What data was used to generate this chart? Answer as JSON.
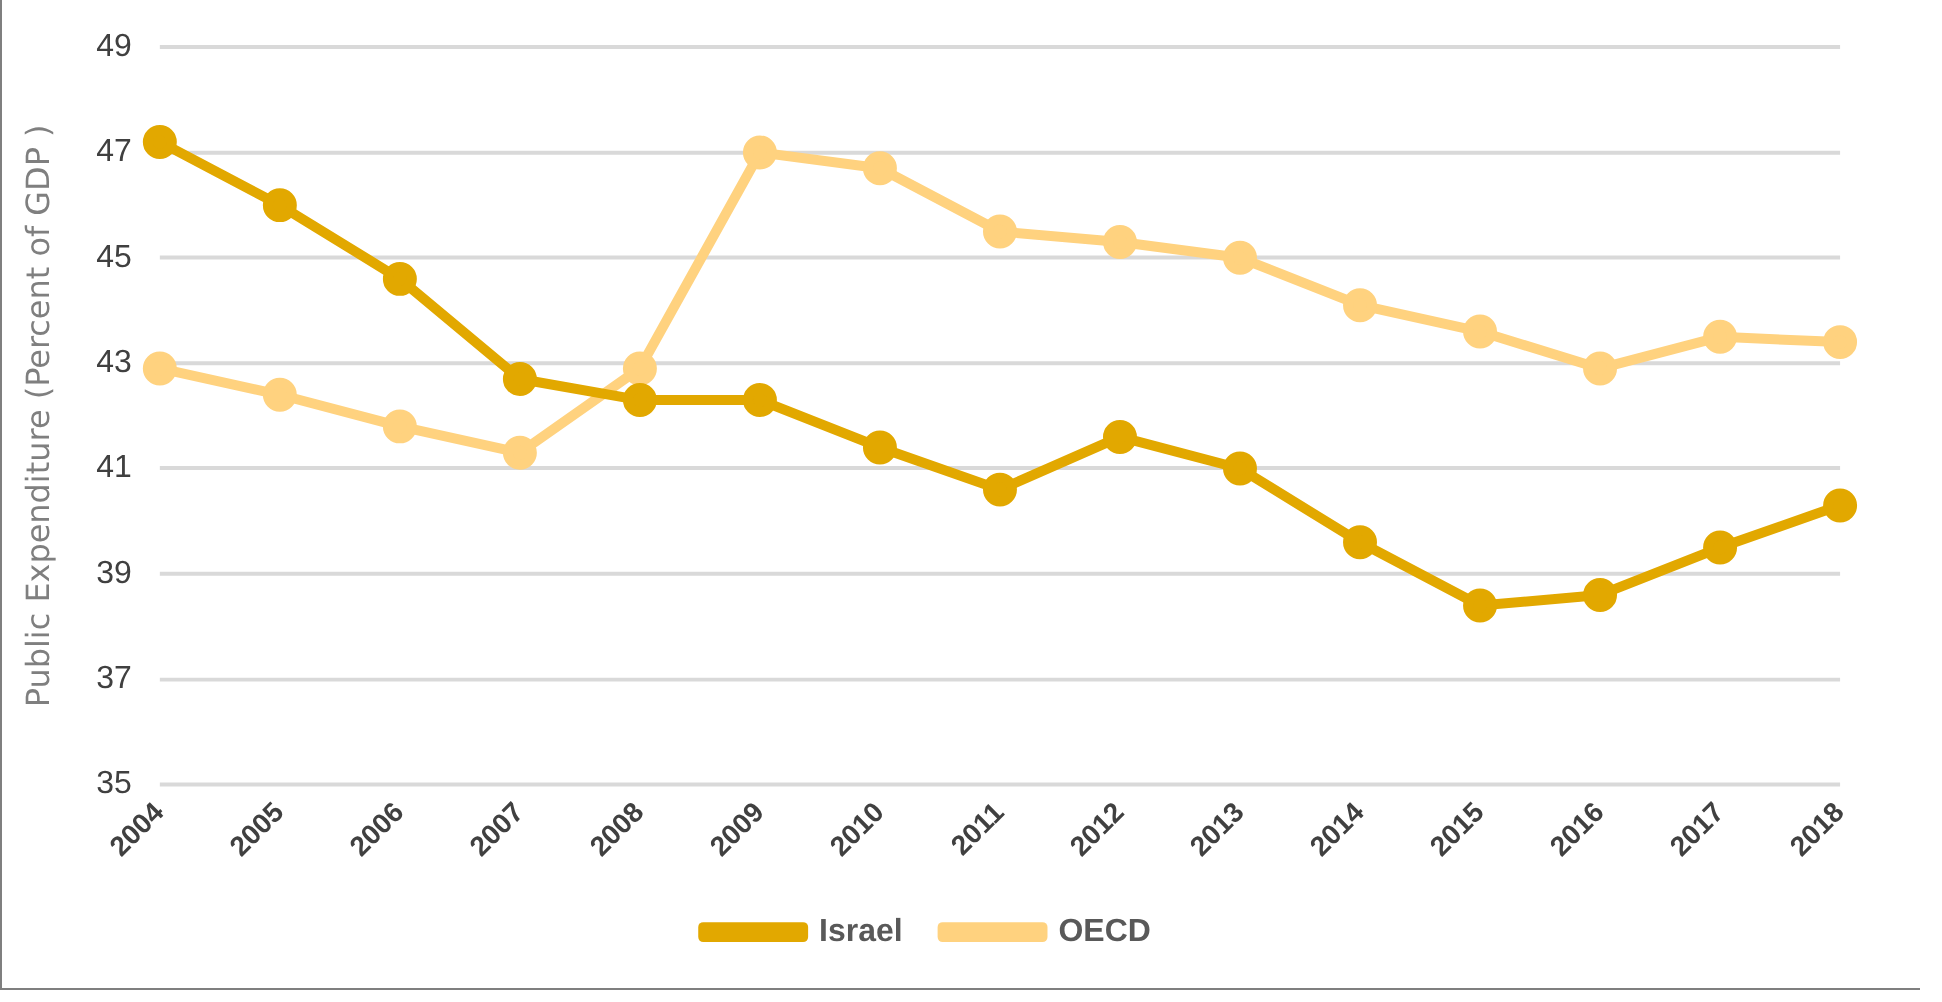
{
  "chart_data": {
    "type": "line",
    "ylabel": "Public Expenditure (Percent of GDP )",
    "categories": [
      "2004",
      "2005",
      "2006",
      "2007",
      "2008",
      "2009",
      "2010",
      "2011",
      "2012",
      "2013",
      "2014",
      "2015",
      "2016",
      "2017",
      "2018"
    ],
    "series": [
      {
        "name": "Israel",
        "color": "#e2a800",
        "values": [
          47.2,
          46.0,
          44.6,
          42.7,
          42.3,
          42.3,
          41.4,
          40.6,
          41.6,
          41.0,
          39.6,
          38.4,
          38.6,
          39.5,
          40.3
        ]
      },
      {
        "name": "OECD",
        "color": "#ffd27f",
        "values": [
          42.9,
          42.4,
          41.8,
          41.3,
          42.9,
          47.0,
          46.7,
          45.5,
          45.3,
          45.0,
          44.1,
          43.6,
          42.9,
          43.5,
          43.4
        ]
      }
    ],
    "ylim": [
      35,
      49
    ],
    "yticks": [
      35,
      37,
      39,
      41,
      43,
      45,
      47,
      49
    ],
    "grid": "y",
    "legend": "bottom",
    "marker": "circle",
    "line_style": "solid"
  }
}
